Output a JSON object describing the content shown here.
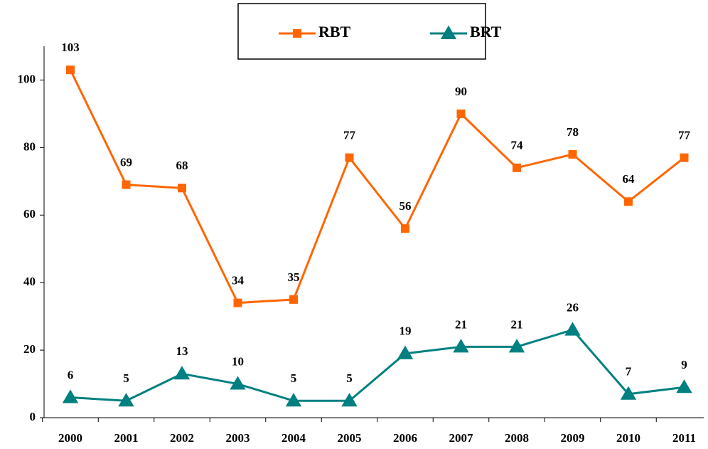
{
  "chart_data": {
    "type": "line",
    "categories": [
      "2000",
      "2001",
      "2002",
      "2003",
      "2004",
      "2005",
      "2006",
      "2007",
      "2008",
      "2009",
      "2010",
      "2011"
    ],
    "series": [
      {
        "name": "RBT",
        "color": "#ff6600",
        "marker": "square",
        "values": [
          103,
          69,
          68,
          34,
          35,
          77,
          56,
          90,
          74,
          78,
          64,
          77
        ]
      },
      {
        "name": "BRT",
        "color": "#008080",
        "marker": "triangle",
        "values": [
          6,
          5,
          13,
          10,
          5,
          5,
          19,
          21,
          21,
          26,
          7,
          9
        ]
      }
    ],
    "ylim": [
      0,
      110
    ],
    "yticks": [
      0,
      20,
      40,
      60,
      80,
      100
    ],
    "grid": false,
    "legend": "top"
  }
}
